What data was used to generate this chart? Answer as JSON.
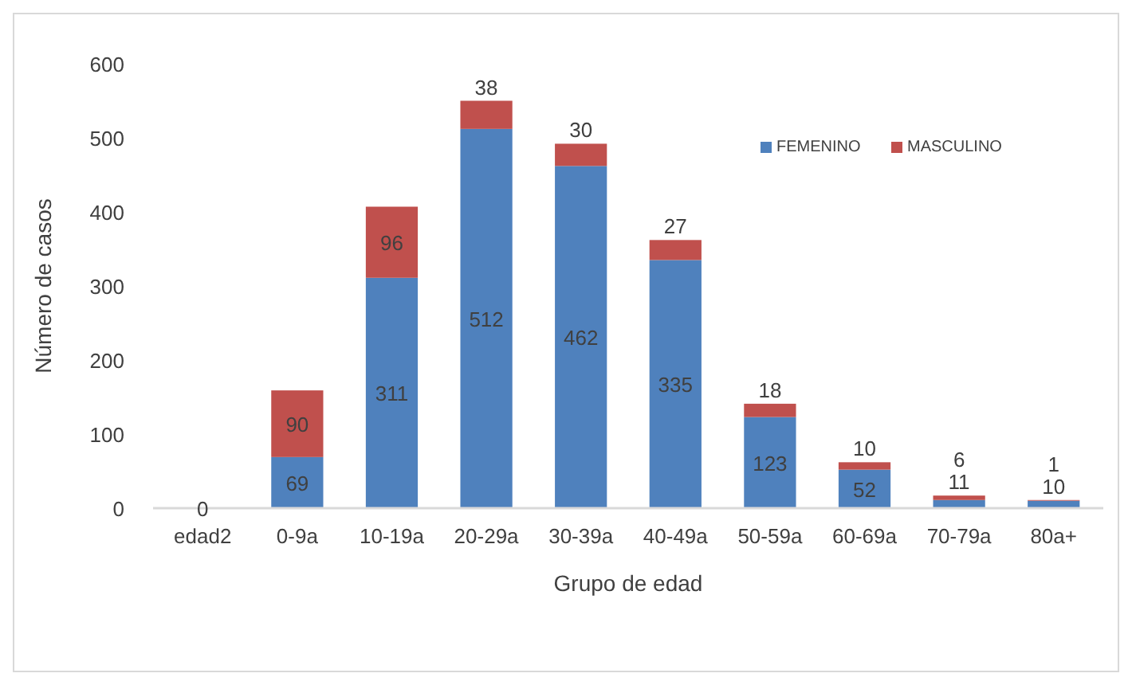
{
  "chart_data": {
    "type": "bar",
    "stacked": true,
    "xlabel": "Grupo de edad",
    "ylabel": "Número de casos",
    "categories": [
      "edad2",
      "0-9a",
      "10-19a",
      "20-29a",
      "30-39a",
      "40-49a",
      "50-59a",
      "60-69a",
      "70-79a",
      "80a+"
    ],
    "series": [
      {
        "name": "FEMENINO",
        "color": "#4f81bd",
        "values": [
          0,
          69,
          311,
          512,
          462,
          335,
          123,
          52,
          11,
          10
        ],
        "value_labels": [
          "0",
          "69",
          "311",
          "512",
          "462",
          "335",
          "123",
          "52",
          "11",
          "10"
        ]
      },
      {
        "name": "MASCULINO",
        "color": "#c0504d",
        "values": [
          0,
          90,
          96,
          38,
          30,
          27,
          18,
          10,
          6,
          1
        ],
        "value_labels": [
          null,
          "90",
          "96",
          "38",
          "30",
          "27",
          "18",
          "10",
          "6",
          "1"
        ]
      }
    ],
    "ylim": [
      0,
      600
    ],
    "yticks": [
      0,
      100,
      200,
      300,
      400,
      500,
      600
    ],
    "grid": false,
    "legend": "top right"
  }
}
